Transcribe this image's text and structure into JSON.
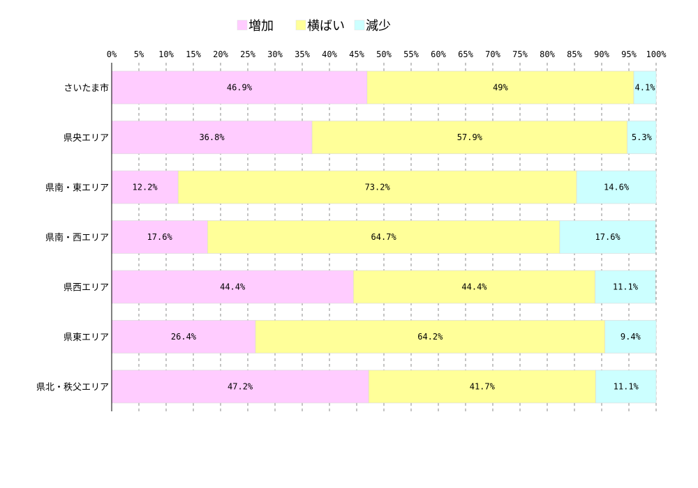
{
  "chart_data": {
    "type": "bar",
    "orientation": "horizontal",
    "stacked": true,
    "categories": [
      "さいたま市",
      "県央エリア",
      "県南・東エリア",
      "県南・西エリア",
      "県西エリア",
      "県東エリア",
      "県北・秩父エリア"
    ],
    "series": [
      {
        "name": "増加",
        "color": "#ffccff",
        "values": [
          46.9,
          36.8,
          12.2,
          17.6,
          44.4,
          26.4,
          47.2
        ],
        "labels": [
          "46.9%",
          "36.8%",
          "12.2%",
          "17.6%",
          "44.4%",
          "26.4%",
          "47.2%"
        ]
      },
      {
        "name": "横ばい",
        "color": "#ffff99",
        "values": [
          49,
          57.9,
          73.2,
          64.7,
          44.4,
          64.2,
          41.7
        ],
        "labels": [
          "49%",
          "57.9%",
          "73.2%",
          "64.7%",
          "44.4%",
          "64.2%",
          "41.7%"
        ]
      },
      {
        "name": "減少",
        "color": "#ccffff",
        "values": [
          4.1,
          5.3,
          14.6,
          17.6,
          11.1,
          9.4,
          11.1
        ],
        "labels": [
          "4.1%",
          "5.3%",
          "14.6%",
          "17.6%",
          "11.1%",
          "9.4%",
          "11.1%"
        ]
      }
    ],
    "xlim": [
      0,
      100
    ],
    "x_ticks": [
      "0%",
      "5%",
      "10%",
      "15%",
      "20%",
      "25%",
      "30%",
      "35%",
      "40%",
      "45%",
      "50%",
      "55%",
      "60%",
      "65%",
      "70%",
      "75%",
      "80%",
      "85%",
      "90%",
      "95%",
      "100%"
    ],
    "x_axis_position": "top",
    "grid": true,
    "legend_position": "top"
  }
}
